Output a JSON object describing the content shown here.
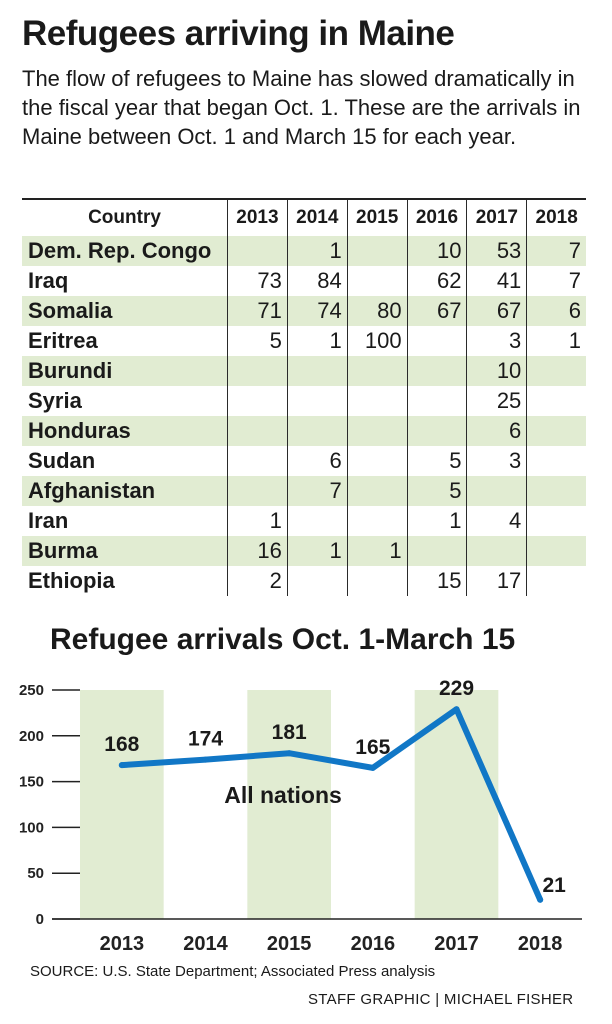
{
  "title": "Refugees arriving in Maine",
  "intro": "The flow of refugees to Maine has slowed dramatically in the fiscal year that began Oct. 1. These are the arrivals in Maine between Oct. 1 and March 15 for each year.",
  "table": {
    "headers": [
      "Country",
      "2013",
      "2014",
      "2015",
      "2016",
      "2017",
      "2018"
    ],
    "rows": [
      [
        "Dem. Rep. Congo",
        "",
        "1",
        "",
        "10",
        "53",
        "7"
      ],
      [
        "Iraq",
        "73",
        "84",
        "",
        "62",
        "41",
        "7"
      ],
      [
        "Somalia",
        "71",
        "74",
        "80",
        "67",
        "67",
        "6"
      ],
      [
        "Eritrea",
        "5",
        "1",
        "100",
        "",
        "3",
        "1"
      ],
      [
        "Burundi",
        "",
        "",
        "",
        "",
        "10",
        ""
      ],
      [
        "Syria",
        "",
        "",
        "",
        "",
        "25",
        ""
      ],
      [
        "Honduras",
        "",
        "",
        "",
        "",
        "6",
        ""
      ],
      [
        "Sudan",
        "",
        "6",
        "",
        "5",
        "3",
        ""
      ],
      [
        "Afghanistan",
        "",
        "7",
        "",
        "5",
        "",
        ""
      ],
      [
        "Iran",
        "1",
        "",
        "",
        "1",
        "4",
        ""
      ],
      [
        "Burma",
        "16",
        "1",
        "1",
        "",
        "",
        ""
      ],
      [
        "Ethiopia",
        "2",
        "",
        "",
        "15",
        "17",
        ""
      ]
    ]
  },
  "chart_data": {
    "type": "line",
    "title": "Refugee arrivals Oct. 1-March 15",
    "categories": [
      "2013",
      "2014",
      "2015",
      "2016",
      "2017",
      "2018"
    ],
    "series": [
      {
        "name": "All nations",
        "values": [
          168,
          174,
          181,
          165,
          229,
          21
        ]
      }
    ],
    "data_labels": [
      "168",
      "174",
      "181",
      "165",
      "229",
      "21"
    ],
    "ylim": [
      0,
      250
    ],
    "yticks": [
      "0",
      "50",
      "100",
      "150",
      "200",
      "250"
    ],
    "shaded_years": [
      "2013",
      "2015",
      "2017"
    ],
    "colors": {
      "line": "#1177c6",
      "shade": "#e1ecd2",
      "axis": "#222222"
    }
  },
  "source": "SOURCE: U.S. State Department; Associated Press analysis",
  "credit": "STAFF GRAPHIC | MICHAEL FISHER"
}
